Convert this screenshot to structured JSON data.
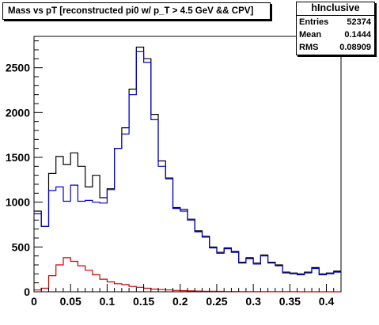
{
  "chart_data": {
    "type": "line",
    "subtype": "step-histogram",
    "title": "Mass vs pT [reconstructed pi0 w/ p_T > 4.5 GeV && CPV]",
    "xlabel": "",
    "ylabel": "",
    "xlim": [
      0,
      0.42
    ],
    "ylim": [
      0,
      2850
    ],
    "grid": false,
    "x_ticks": [
      0,
      0.05,
      0.1,
      0.15,
      0.2,
      0.25,
      0.3,
      0.35,
      0.4
    ],
    "x_tick_labels": [
      "0",
      "0.05",
      "0.1",
      "0.15",
      "0.2",
      "0.25",
      "0.3",
      "0.35",
      "0.4"
    ],
    "y_ticks": [
      0,
      500,
      1000,
      1500,
      2000,
      2500
    ],
    "y_tick_labels": [
      "0",
      "500",
      "1000",
      "1500",
      "2000",
      "2500"
    ],
    "bin_width": 0.01,
    "x_bin_edges_start": 0,
    "series": [
      {
        "color": "#000000",
        "values": [
          900,
          730,
          1320,
          1510,
          1420,
          1550,
          1400,
          1170,
          1300,
          1050,
          1150,
          1600,
          1830,
          2260,
          2730,
          2600,
          1980,
          1460,
          1270,
          940,
          920,
          810,
          680,
          620,
          500,
          440,
          490,
          450,
          330,
          380,
          320,
          410,
          330,
          300,
          220,
          210,
          200,
          220,
          270,
          200,
          210,
          230
        ]
      },
      {
        "color": "#0000cc",
        "values": [
          870,
          730,
          1130,
          1170,
          1010,
          1190,
          1010,
          1020,
          1000,
          990,
          1140,
          1600,
          1760,
          2200,
          2680,
          2560,
          1920,
          1400,
          1260,
          930,
          900,
          800,
          670,
          610,
          490,
          430,
          480,
          440,
          320,
          370,
          310,
          400,
          320,
          290,
          210,
          200,
          190,
          210,
          260,
          190,
          200,
          220
        ]
      },
      {
        "color": "#cc0000",
        "values": [
          20,
          40,
          180,
          300,
          380,
          340,
          290,
          240,
          190,
          140,
          110,
          90,
          80,
          60,
          50,
          40,
          30,
          25,
          20,
          15,
          12,
          10,
          8,
          6,
          5,
          4,
          3,
          3,
          2,
          2,
          2,
          1,
          1,
          1,
          1,
          1,
          0,
          0,
          0,
          0,
          0,
          0
        ]
      }
    ],
    "stats": {
      "name": "hInclusive",
      "rows": [
        {
          "key": "Entries",
          "value": "52374"
        },
        {
          "key": "Mean",
          "value": "0.1444"
        },
        {
          "key": "RMS",
          "value": "0.08909"
        }
      ]
    }
  }
}
